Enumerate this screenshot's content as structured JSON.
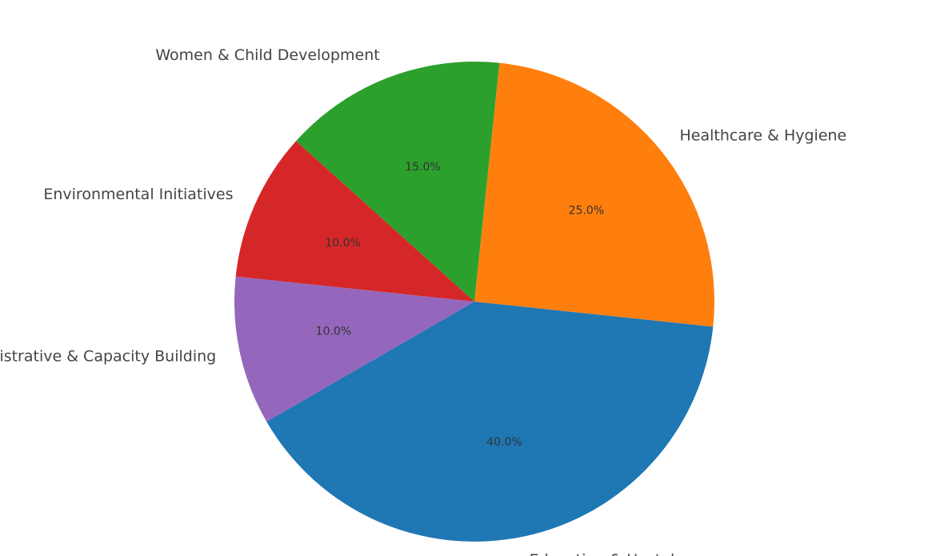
{
  "chart_data": {
    "type": "pie",
    "title": "",
    "start_angle_deg": 210,
    "direction": "counterclockwise",
    "slices": [
      {
        "label": "Education & Hostels",
        "value": 40.0,
        "pct_label": "40.0%",
        "color": "#1f77b4"
      },
      {
        "label": "Healthcare & Hygiene",
        "value": 25.0,
        "pct_label": "25.0%",
        "color": "#ff7f0e"
      },
      {
        "label": "Women & Child Development",
        "value": 15.0,
        "pct_label": "15.0%",
        "color": "#2ca02c"
      },
      {
        "label": "Environmental Initiatives",
        "value": 10.0,
        "pct_label": "10.0%",
        "color": "#d62728"
      },
      {
        "label": "Administrative & Capacity Building",
        "value": 10.0,
        "pct_label": "10.0%",
        "color": "#9467bd"
      }
    ]
  }
}
